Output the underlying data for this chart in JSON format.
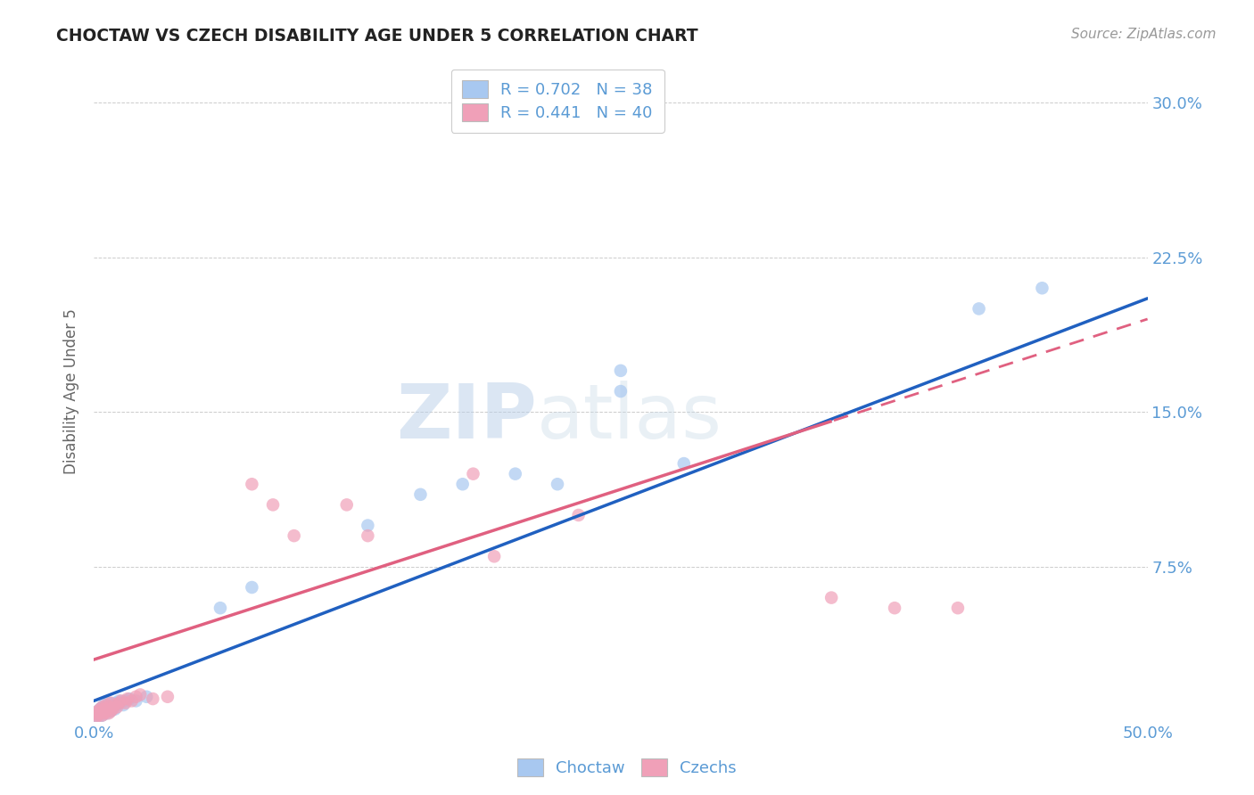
{
  "title": "CHOCTAW VS CZECH DISABILITY AGE UNDER 5 CORRELATION CHART",
  "source": "Source: ZipAtlas.com",
  "ylabel": "Disability Age Under 5",
  "xlim": [
    0.0,
    0.5
  ],
  "ylim": [
    0.0,
    0.32
  ],
  "yticks": [
    0.0,
    0.075,
    0.15,
    0.225,
    0.3
  ],
  "xticks": [
    0.0,
    0.1,
    0.2,
    0.3,
    0.4,
    0.5
  ],
  "color_blue": "#a8c8f0",
  "color_pink": "#f0a0b8",
  "color_blue_line": "#2060c0",
  "color_pink_line": "#e06080",
  "color_axis_labels": "#5b9bd5",
  "choctaw_x": [
    0.001,
    0.002,
    0.002,
    0.003,
    0.003,
    0.004,
    0.004,
    0.005,
    0.005,
    0.006,
    0.006,
    0.007,
    0.007,
    0.008,
    0.008,
    0.009,
    0.01,
    0.01,
    0.011,
    0.012,
    0.013,
    0.014,
    0.015,
    0.017,
    0.02,
    0.025,
    0.06,
    0.075,
    0.13,
    0.155,
    0.175,
    0.2,
    0.22,
    0.25,
    0.28,
    0.42,
    0.45,
    0.25
  ],
  "choctaw_y": [
    0.003,
    0.002,
    0.005,
    0.004,
    0.006,
    0.003,
    0.007,
    0.005,
    0.008,
    0.004,
    0.007,
    0.006,
    0.009,
    0.005,
    0.008,
    0.007,
    0.006,
    0.009,
    0.008,
    0.01,
    0.009,
    0.008,
    0.01,
    0.011,
    0.01,
    0.012,
    0.055,
    0.065,
    0.095,
    0.11,
    0.115,
    0.12,
    0.115,
    0.17,
    0.125,
    0.2,
    0.21,
    0.16
  ],
  "czech_x": [
    0.001,
    0.001,
    0.002,
    0.002,
    0.003,
    0.003,
    0.004,
    0.004,
    0.005,
    0.005,
    0.006,
    0.006,
    0.007,
    0.007,
    0.008,
    0.008,
    0.009,
    0.01,
    0.011,
    0.012,
    0.013,
    0.015,
    0.016,
    0.018,
    0.02,
    0.022,
    0.028,
    0.035,
    0.075,
    0.085,
    0.095,
    0.12,
    0.13,
    0.18,
    0.19,
    0.23,
    0.35,
    0.38,
    0.41,
    0.19
  ],
  "czech_y": [
    0.002,
    0.004,
    0.003,
    0.005,
    0.004,
    0.006,
    0.003,
    0.007,
    0.004,
    0.006,
    0.005,
    0.008,
    0.004,
    0.007,
    0.005,
    0.009,
    0.006,
    0.008,
    0.007,
    0.009,
    0.01,
    0.009,
    0.011,
    0.01,
    0.012,
    0.013,
    0.011,
    0.012,
    0.115,
    0.105,
    0.09,
    0.105,
    0.09,
    0.12,
    0.295,
    0.1,
    0.06,
    0.055,
    0.055,
    0.08
  ]
}
